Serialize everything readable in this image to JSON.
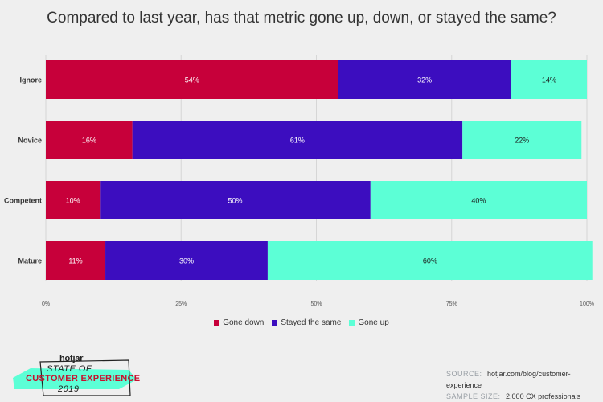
{
  "title": "Compared to last year, has that metric gone up, down, or stayed the same?",
  "chart_data": {
    "type": "bar",
    "orientation": "horizontal",
    "stacked": true,
    "categories": [
      "Ignore",
      "Novice",
      "Competent",
      "Mature"
    ],
    "series": [
      {
        "name": "Gone down",
        "values": [
          54,
          16,
          10,
          11
        ],
        "color": "#c7003a"
      },
      {
        "name": "Stayed the same",
        "values": [
          32,
          61,
          50,
          30
        ],
        "color": "#3c0dbf"
      },
      {
        "name": "Gone up",
        "values": [
          14,
          22,
          40,
          60
        ],
        "color": "#5cffd6"
      }
    ],
    "value_labels": [
      [
        "54%",
        "16%",
        "10%",
        "11%"
      ],
      [
        "32%",
        "61%",
        "50%",
        "30%"
      ],
      [
        "14%",
        "22%",
        "40%",
        "60%"
      ]
    ],
    "xlim": [
      0,
      100
    ],
    "x_ticks": [
      "0%",
      "25%",
      "50%",
      "75%",
      "100%"
    ],
    "grid": true,
    "legend_position": "bottom"
  },
  "logo": {
    "brand": "hotjar",
    "line1": "STATE OF",
    "line2": "CUSTOMER EXPERIENCE",
    "line3": "2019"
  },
  "footer": {
    "source_label": "SOURCE:",
    "source_value": "hotjar.com/blog/customer-experience",
    "sample_label": "SAMPLE SIZE:",
    "sample_value": "2,000 CX professionals"
  }
}
